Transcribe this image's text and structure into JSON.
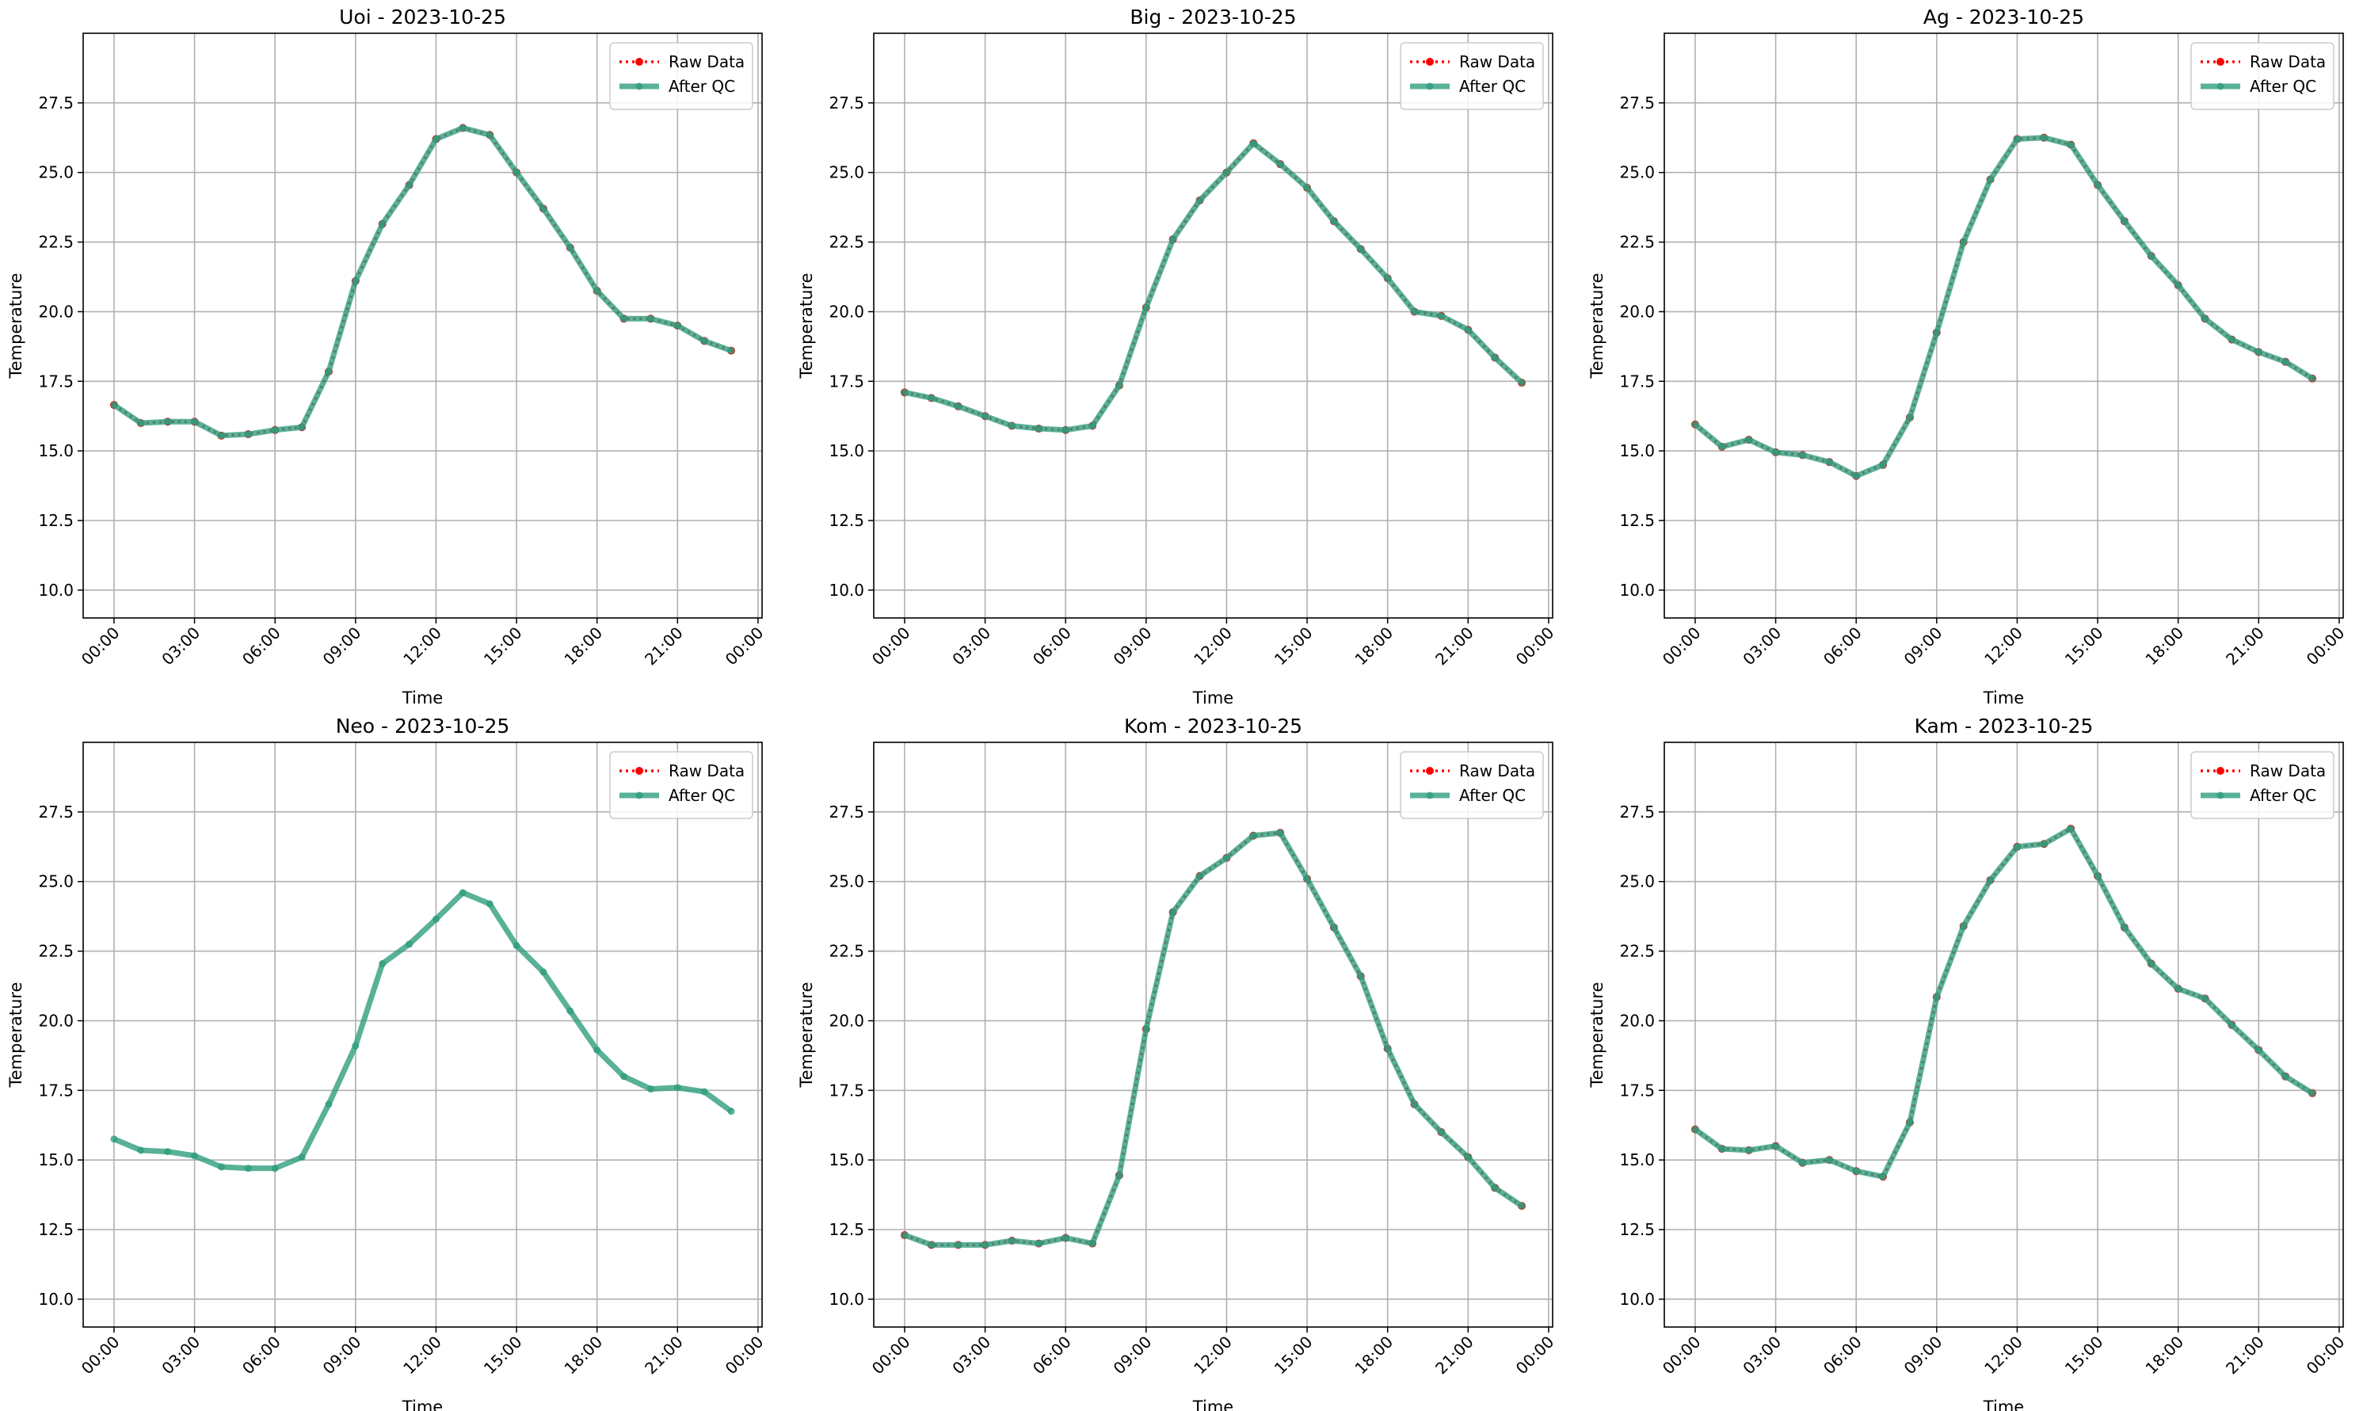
{
  "chart_data": [
    {
      "type": "line",
      "title": "Uoi - 2023-10-25",
      "x_label": "Time",
      "y_label": "Temperature",
      "x": [
        0,
        1,
        2,
        3,
        4,
        5,
        6,
        7,
        8,
        9,
        10,
        11,
        12,
        13,
        14,
        15,
        16,
        17,
        18,
        19,
        20,
        21,
        22,
        23
      ],
      "xlim": [
        -1.15,
        24.15
      ],
      "xticks": [
        {
          "value": 0,
          "label": "00:00"
        },
        {
          "value": 3,
          "label": "03:00"
        },
        {
          "value": 6,
          "label": "06:00"
        },
        {
          "value": 9,
          "label": "09:00"
        },
        {
          "value": 12,
          "label": "12:00"
        },
        {
          "value": 15,
          "label": "15:00"
        },
        {
          "value": 18,
          "label": "18:00"
        },
        {
          "value": 21,
          "label": "21:00"
        },
        {
          "value": 24,
          "label": "00:00"
        }
      ],
      "ylim": [
        9,
        30
      ],
      "yticks": [
        {
          "value": 10,
          "label": "10.0"
        },
        12.5,
        {
          "value": 15,
          "label": "15.0"
        },
        17.5,
        {
          "value": 20,
          "label": "20.0"
        },
        22.5,
        {
          "value": 25,
          "label": "25.0"
        },
        27.5
      ],
      "grid": true,
      "legend": "upper right",
      "series": [
        {
          "name": "Raw Data",
          "color": "#ff0000",
          "values": [
            16.65,
            16.0,
            16.05,
            16.05,
            15.55,
            15.6,
            15.75,
            15.85,
            17.85,
            21.1,
            23.15,
            24.55,
            26.2,
            26.6,
            26.35,
            25.0,
            23.7,
            22.3,
            20.75,
            19.75,
            19.75,
            19.5,
            18.95,
            18.6
          ]
        },
        {
          "name": "After QC",
          "color": "#2f9e7e",
          "values": [
            16.65,
            16.0,
            16.05,
            16.05,
            15.55,
            15.6,
            15.75,
            15.85,
            17.85,
            21.1,
            23.15,
            24.55,
            26.2,
            26.6,
            26.35,
            25.0,
            23.7,
            22.3,
            20.75,
            19.75,
            19.75,
            19.5,
            18.95,
            18.6
          ]
        }
      ]
    },
    {
      "type": "line",
      "title": "Big - 2023-10-25",
      "x_label": "Time",
      "y_label": "Temperature",
      "x": [
        0,
        1,
        2,
        3,
        4,
        5,
        6,
        7,
        8,
        9,
        10,
        11,
        12,
        13,
        14,
        15,
        16,
        17,
        18,
        19,
        20,
        21,
        22,
        23
      ],
      "xlim": [
        -1.15,
        24.15
      ],
      "xticks": [
        {
          "value": 0,
          "label": "00:00"
        },
        {
          "value": 3,
          "label": "03:00"
        },
        {
          "value": 6,
          "label": "06:00"
        },
        {
          "value": 9,
          "label": "09:00"
        },
        {
          "value": 12,
          "label": "12:00"
        },
        {
          "value": 15,
          "label": "15:00"
        },
        {
          "value": 18,
          "label": "18:00"
        },
        {
          "value": 21,
          "label": "21:00"
        },
        {
          "value": 24,
          "label": "00:00"
        }
      ],
      "ylim": [
        9,
        30
      ],
      "yticks": [
        {
          "value": 10,
          "label": "10.0"
        },
        12.5,
        {
          "value": 15,
          "label": "15.0"
        },
        17.5,
        {
          "value": 20,
          "label": "20.0"
        },
        22.5,
        {
          "value": 25,
          "label": "25.0"
        },
        27.5
      ],
      "grid": true,
      "legend": "upper right",
      "series": [
        {
          "name": "Raw Data",
          "color": "#ff0000",
          "values": [
            17.1,
            16.9,
            16.6,
            16.25,
            15.9,
            15.8,
            15.75,
            15.9,
            17.35,
            20.15,
            22.6,
            24.0,
            25.0,
            26.05,
            25.3,
            24.45,
            23.25,
            22.25,
            21.2,
            20.0,
            19.85,
            19.35,
            18.35,
            17.45
          ]
        },
        {
          "name": "After QC",
          "color": "#2f9e7e",
          "values": [
            17.1,
            16.9,
            16.6,
            16.25,
            15.9,
            15.8,
            15.75,
            15.9,
            17.35,
            20.15,
            22.6,
            24.0,
            25.0,
            26.05,
            25.3,
            24.45,
            23.25,
            22.25,
            21.2,
            20.0,
            19.85,
            19.35,
            18.35,
            17.45
          ]
        }
      ]
    },
    {
      "type": "line",
      "title": "Ag - 2023-10-25",
      "x_label": "Time",
      "y_label": "Temperature",
      "x": [
        0,
        1,
        2,
        3,
        4,
        5,
        6,
        7,
        8,
        9,
        10,
        11,
        12,
        13,
        14,
        15,
        16,
        17,
        18,
        19,
        20,
        21,
        22,
        23
      ],
      "xlim": [
        -1.15,
        24.15
      ],
      "xticks": [
        {
          "value": 0,
          "label": "00:00"
        },
        {
          "value": 3,
          "label": "03:00"
        },
        {
          "value": 6,
          "label": "06:00"
        },
        {
          "value": 9,
          "label": "09:00"
        },
        {
          "value": 12,
          "label": "12:00"
        },
        {
          "value": 15,
          "label": "15:00"
        },
        {
          "value": 18,
          "label": "18:00"
        },
        {
          "value": 21,
          "label": "21:00"
        },
        {
          "value": 24,
          "label": "00:00"
        }
      ],
      "ylim": [
        9,
        30
      ],
      "yticks": [
        {
          "value": 10,
          "label": "10.0"
        },
        12.5,
        {
          "value": 15,
          "label": "15.0"
        },
        17.5,
        {
          "value": 20,
          "label": "20.0"
        },
        22.5,
        {
          "value": 25,
          "label": "25.0"
        },
        27.5
      ],
      "grid": true,
      "legend": "upper right",
      "series": [
        {
          "name": "Raw Data",
          "color": "#ff0000",
          "values": [
            15.95,
            15.15,
            15.4,
            14.95,
            14.85,
            14.6,
            14.1,
            14.5,
            16.2,
            19.25,
            22.5,
            24.75,
            26.2,
            26.25,
            26.0,
            24.55,
            23.25,
            22.0,
            20.95,
            19.75,
            19.0,
            18.55,
            18.2,
            17.6
          ]
        },
        {
          "name": "After QC",
          "color": "#2f9e7e",
          "values": [
            15.95,
            15.15,
            15.4,
            14.95,
            14.85,
            14.6,
            14.1,
            14.5,
            16.2,
            19.25,
            22.5,
            24.75,
            26.2,
            26.25,
            26.0,
            24.55,
            23.25,
            22.0,
            20.95,
            19.75,
            19.0,
            18.55,
            18.2,
            17.6
          ]
        }
      ]
    },
    {
      "type": "line",
      "title": "Neo - 2023-10-25",
      "x_label": "Time",
      "y_label": "Temperature",
      "x": [
        0,
        1,
        2,
        3,
        4,
        5,
        6,
        7,
        8,
        9,
        10,
        11,
        12,
        13,
        14,
        15,
        16,
        17,
        18,
        19,
        20,
        21,
        22,
        23
      ],
      "xlim": [
        -1.15,
        24.15
      ],
      "xticks": [
        {
          "value": 0,
          "label": "00:00"
        },
        {
          "value": 3,
          "label": "03:00"
        },
        {
          "value": 6,
          "label": "06:00"
        },
        {
          "value": 9,
          "label": "09:00"
        },
        {
          "value": 12,
          "label": "12:00"
        },
        {
          "value": 15,
          "label": "15:00"
        },
        {
          "value": 18,
          "label": "18:00"
        },
        {
          "value": 21,
          "label": "21:00"
        },
        {
          "value": 24,
          "label": "00:00"
        }
      ],
      "ylim": [
        9,
        30
      ],
      "yticks": [
        {
          "value": 10,
          "label": "10.0"
        },
        12.5,
        {
          "value": 15,
          "label": "15.0"
        },
        17.5,
        {
          "value": 20,
          "label": "20.0"
        },
        22.5,
        {
          "value": 25,
          "label": "25.0"
        },
        27.5
      ],
      "grid": true,
      "legend": "upper right",
      "series": [
        {
          "name": "Raw Data",
          "color": "#ff0000",
          "values": [
            null,
            null,
            null,
            null,
            null,
            null,
            null,
            null,
            null,
            null,
            null,
            null,
            null,
            null,
            null,
            null,
            null,
            null,
            null,
            null,
            null,
            null,
            null,
            null
          ]
        },
        {
          "name": "After QC",
          "color": "#2f9e7e",
          "values": [
            15.75,
            15.35,
            15.3,
            15.15,
            14.75,
            14.7,
            14.7,
            15.1,
            17.0,
            19.1,
            22.05,
            22.75,
            23.65,
            24.6,
            24.2,
            22.7,
            21.75,
            20.35,
            18.95,
            18.0,
            17.55,
            17.6,
            17.45,
            16.75
          ]
        }
      ]
    },
    {
      "type": "line",
      "title": "Kom - 2023-10-25",
      "x_label": "Time",
      "y_label": "Temperature",
      "x": [
        0,
        1,
        2,
        3,
        4,
        5,
        6,
        7,
        8,
        9,
        10,
        11,
        12,
        13,
        14,
        15,
        16,
        17,
        18,
        19,
        20,
        21,
        22,
        23
      ],
      "xlim": [
        -1.15,
        24.15
      ],
      "xticks": [
        {
          "value": 0,
          "label": "00:00"
        },
        {
          "value": 3,
          "label": "03:00"
        },
        {
          "value": 6,
          "label": "06:00"
        },
        {
          "value": 9,
          "label": "09:00"
        },
        {
          "value": 12,
          "label": "12:00"
        },
        {
          "value": 15,
          "label": "15:00"
        },
        {
          "value": 18,
          "label": "18:00"
        },
        {
          "value": 21,
          "label": "21:00"
        },
        {
          "value": 24,
          "label": "00:00"
        }
      ],
      "ylim": [
        9,
        30
      ],
      "yticks": [
        {
          "value": 10,
          "label": "10.0"
        },
        12.5,
        {
          "value": 15,
          "label": "15.0"
        },
        17.5,
        {
          "value": 20,
          "label": "20.0"
        },
        22.5,
        {
          "value": 25,
          "label": "25.0"
        },
        27.5
      ],
      "grid": true,
      "legend": "upper right",
      "series": [
        {
          "name": "Raw Data",
          "color": "#ff0000",
          "values": [
            12.3,
            11.95,
            11.95,
            11.95,
            12.1,
            12.0,
            12.2,
            12.0,
            14.45,
            19.7,
            23.9,
            25.2,
            25.85,
            26.65,
            26.75,
            25.1,
            23.35,
            21.6,
            19.0,
            17.0,
            16.0,
            15.1,
            14.0,
            13.35
          ]
        },
        {
          "name": "After QC",
          "color": "#2f9e7e",
          "values": [
            12.3,
            11.95,
            11.95,
            11.95,
            12.1,
            12.0,
            12.2,
            12.0,
            14.45,
            19.7,
            23.9,
            25.2,
            25.85,
            26.65,
            26.75,
            25.1,
            23.35,
            21.6,
            19.0,
            17.0,
            16.0,
            15.1,
            14.0,
            13.35
          ]
        }
      ]
    },
    {
      "type": "line",
      "title": "Kam - 2023-10-25",
      "x_label": "Time",
      "y_label": "Temperature",
      "x": [
        0,
        1,
        2,
        3,
        4,
        5,
        6,
        7,
        8,
        9,
        10,
        11,
        12,
        13,
        14,
        15,
        16,
        17,
        18,
        19,
        20,
        21,
        22,
        23
      ],
      "xlim": [
        -1.15,
        24.15
      ],
      "xticks": [
        {
          "value": 0,
          "label": "00:00"
        },
        {
          "value": 3,
          "label": "03:00"
        },
        {
          "value": 6,
          "label": "06:00"
        },
        {
          "value": 9,
          "label": "09:00"
        },
        {
          "value": 12,
          "label": "12:00"
        },
        {
          "value": 15,
          "label": "15:00"
        },
        {
          "value": 18,
          "label": "18:00"
        },
        {
          "value": 21,
          "label": "21:00"
        },
        {
          "value": 24,
          "label": "00:00"
        }
      ],
      "ylim": [
        9,
        30
      ],
      "yticks": [
        {
          "value": 10,
          "label": "10.0"
        },
        12.5,
        {
          "value": 15,
          "label": "15.0"
        },
        17.5,
        {
          "value": 20,
          "label": "20.0"
        },
        22.5,
        {
          "value": 25,
          "label": "25.0"
        },
        27.5
      ],
      "grid": true,
      "legend": "upper right",
      "series": [
        {
          "name": "Raw Data",
          "color": "#ff0000",
          "values": [
            16.1,
            15.4,
            15.35,
            15.5,
            14.9,
            15.0,
            14.6,
            14.4,
            16.35,
            20.85,
            23.4,
            25.05,
            26.25,
            26.35,
            26.9,
            25.2,
            23.35,
            22.05,
            21.15,
            20.8,
            19.85,
            18.95,
            18.0,
            17.4
          ]
        },
        {
          "name": "After QC",
          "color": "#2f9e7e",
          "values": [
            16.1,
            15.4,
            15.35,
            15.5,
            14.9,
            15.0,
            14.6,
            14.4,
            16.35,
            20.85,
            23.4,
            25.05,
            26.25,
            26.35,
            26.9,
            25.2,
            23.35,
            22.05,
            21.15,
            20.8,
            19.85,
            18.95,
            18.0,
            17.4
          ]
        }
      ]
    }
  ]
}
